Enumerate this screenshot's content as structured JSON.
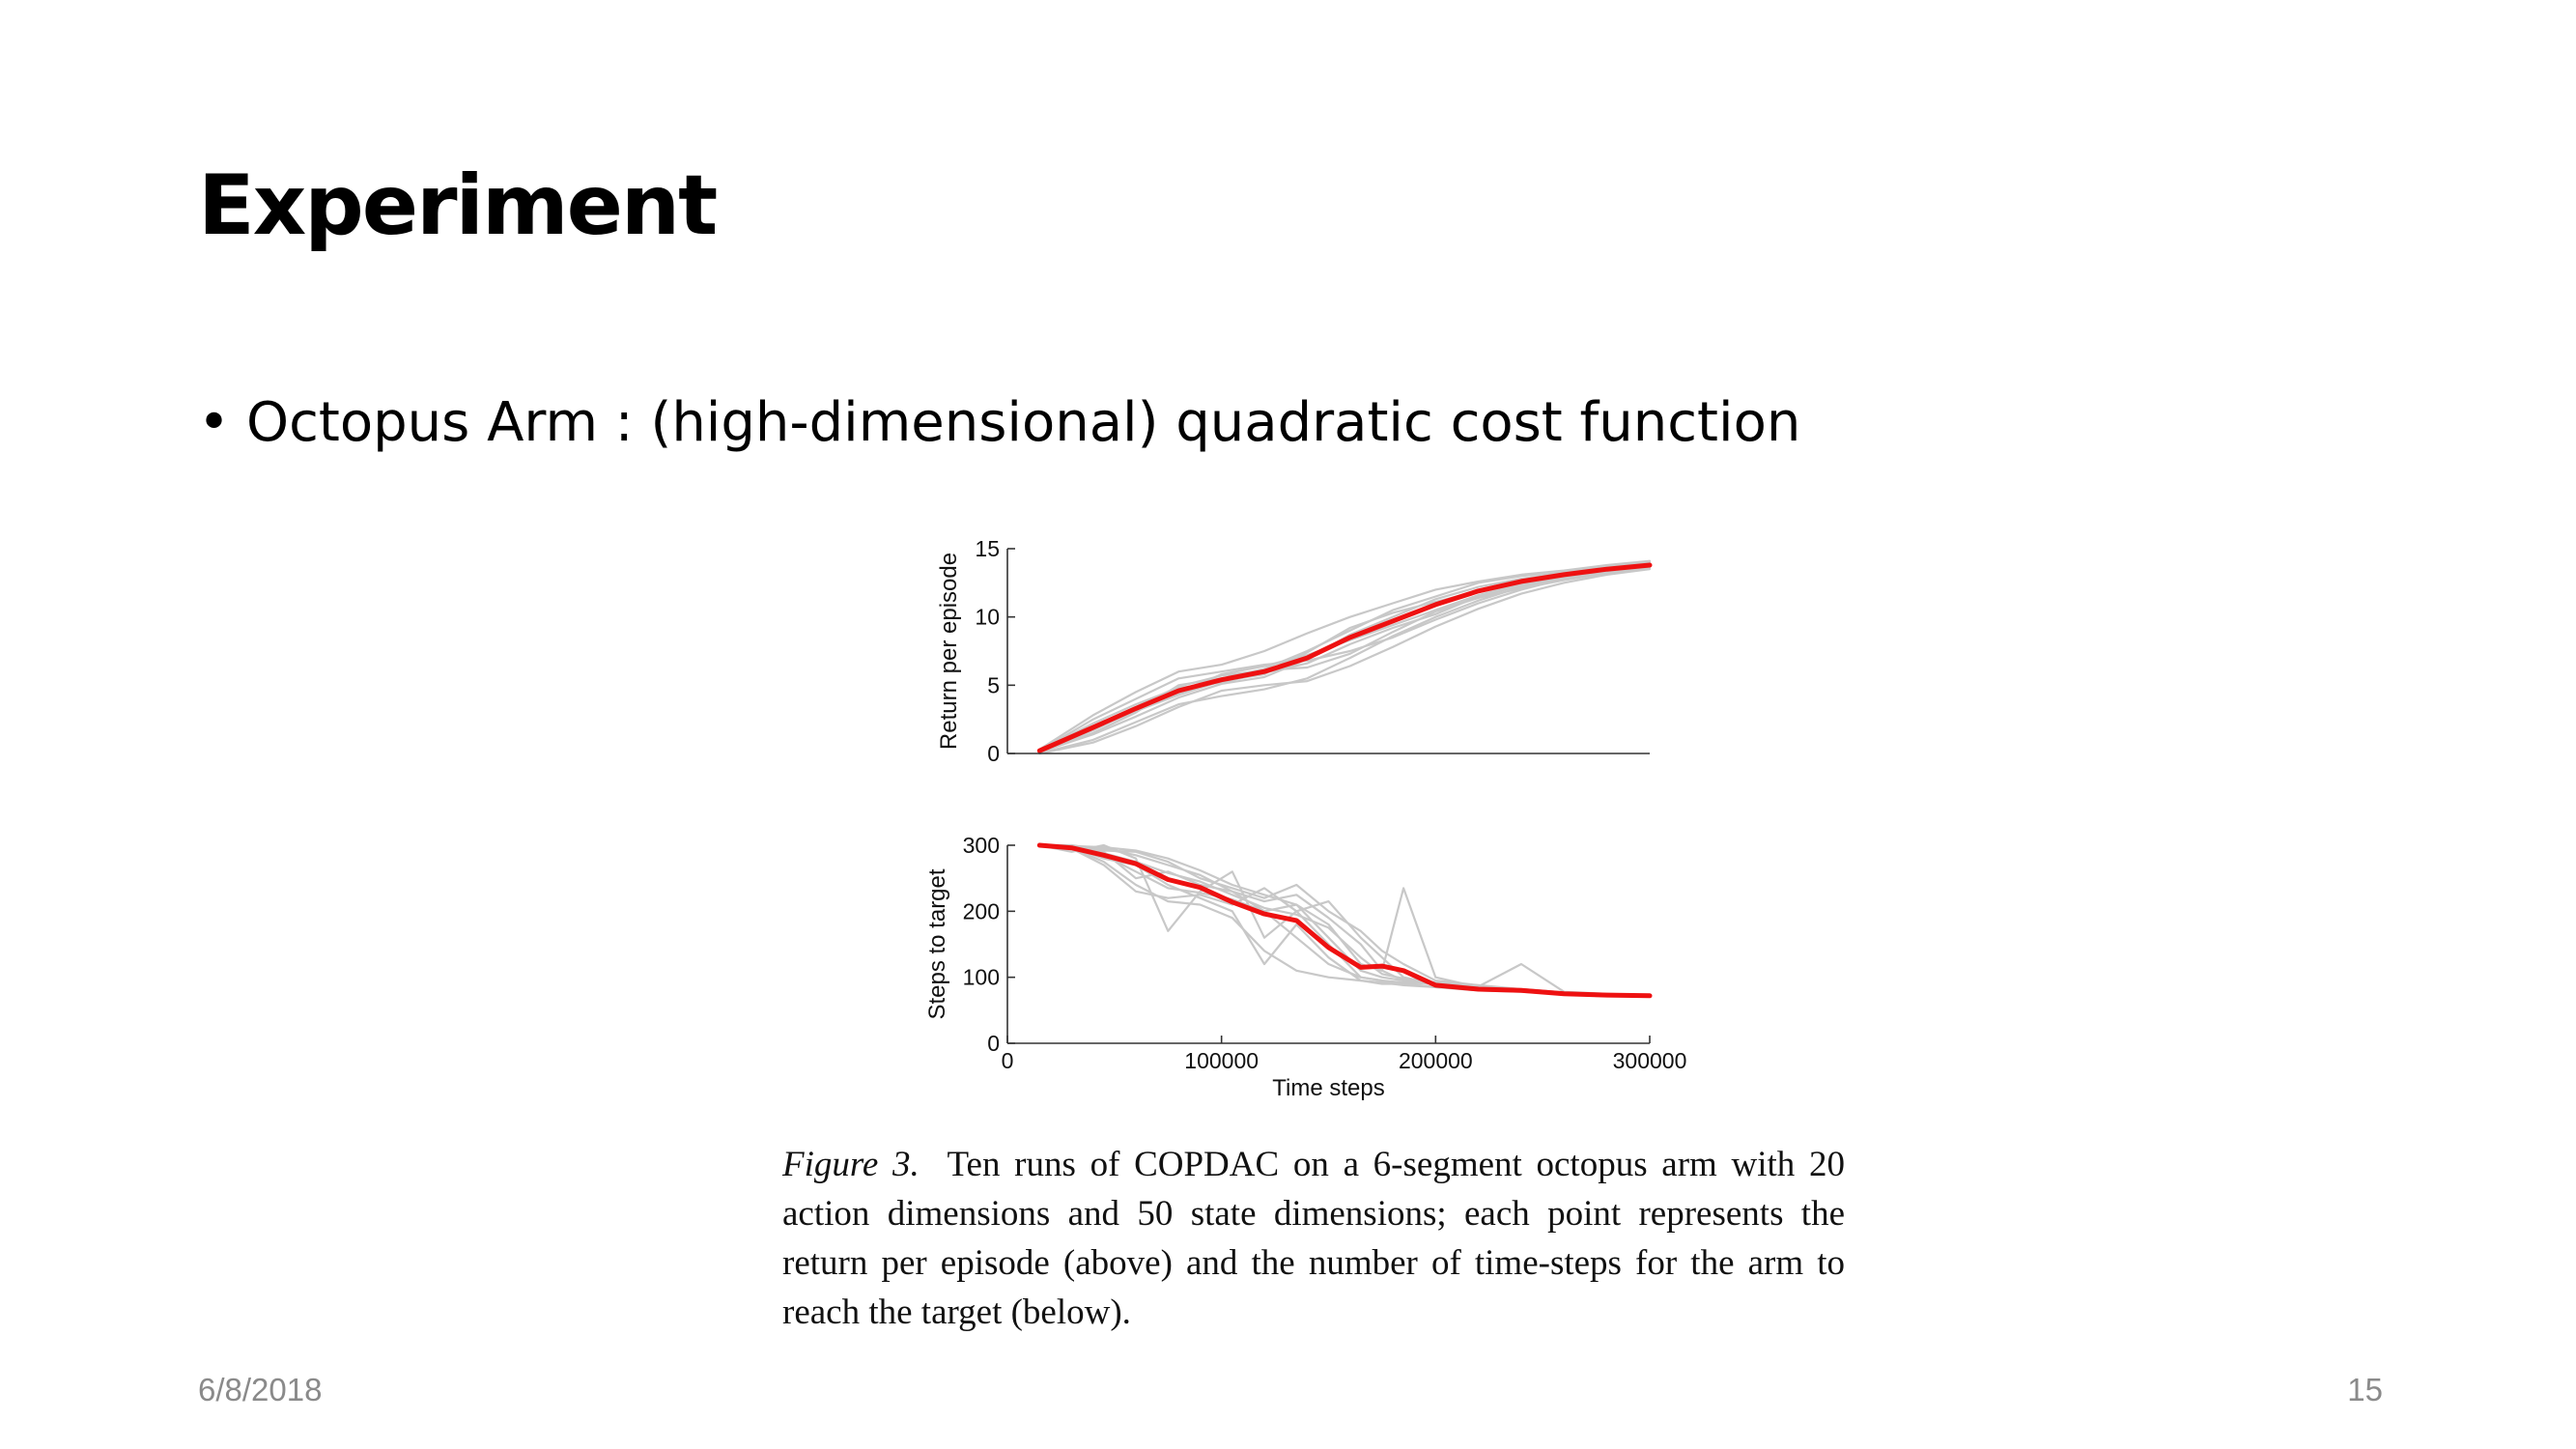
{
  "slide": {
    "title": "Experiment",
    "bullet": "Octopus Arm : (high-dimensional) quadratic cost function",
    "caption_label": "Figure 3.",
    "caption_text": "Ten runs of COPDAC on a 6-segment octopus arm with 20 action dimensions and 50 state dimensions; each point represents the return per episode (above) and the number of time-steps for the arm to reach the target (below).",
    "date": "6/8/2018",
    "page_number": "15"
  },
  "colors": {
    "mean": "#ee1111",
    "runs": "#c8c8c8",
    "axis": "#333333"
  },
  "chart_data": [
    {
      "type": "line",
      "ylabel": "Return per episode",
      "xlabel": "",
      "xlim": [
        0,
        300000
      ],
      "ylim": [
        0,
        15
      ],
      "yticks": [
        0,
        5,
        10,
        15
      ],
      "ytick_labels": [
        "0",
        "5",
        "10",
        "15"
      ],
      "grid": false,
      "series": [
        {
          "role": "mean",
          "x": [
            15000,
            40000,
            60000,
            80000,
            100000,
            120000,
            140000,
            160000,
            180000,
            200000,
            220000,
            240000,
            260000,
            280000,
            300000
          ],
          "y": [
            0.2,
            1.9,
            3.3,
            4.6,
            5.4,
            6.0,
            7.0,
            8.5,
            9.7,
            10.9,
            11.9,
            12.6,
            13.1,
            13.5,
            13.8
          ]
        },
        {
          "role": "run",
          "x": [
            15000,
            40000,
            60000,
            80000,
            100000,
            120000,
            140000,
            160000,
            180000,
            200000,
            220000,
            240000,
            260000,
            280000,
            300000
          ],
          "y": [
            0.1,
            1.5,
            3.0,
            5.0,
            5.5,
            6.2,
            7.5,
            9.0,
            10.5,
            11.5,
            12.5,
            13.0,
            13.3,
            13.7,
            14.0
          ]
        },
        {
          "role": "run",
          "x": [
            15000,
            40000,
            60000,
            80000,
            100000,
            120000,
            140000,
            160000,
            180000,
            200000,
            220000,
            240000,
            260000,
            280000,
            300000
          ],
          "y": [
            0.2,
            2.5,
            4.0,
            5.5,
            6.0,
            6.5,
            6.8,
            7.5,
            8.5,
            9.8,
            11.0,
            12.0,
            12.8,
            13.3,
            13.6
          ]
        },
        {
          "role": "run",
          "x": [
            15000,
            40000,
            60000,
            80000,
            100000,
            120000,
            140000,
            160000,
            180000,
            200000,
            220000,
            240000,
            260000,
            280000,
            300000
          ],
          "y": [
            0.0,
            1.0,
            2.3,
            3.6,
            4.2,
            4.7,
            5.5,
            7.0,
            8.6,
            10.0,
            11.2,
            12.2,
            12.9,
            13.4,
            13.7
          ]
        },
        {
          "role": "run",
          "x": [
            15000,
            40000,
            60000,
            80000,
            100000,
            120000,
            140000,
            160000,
            180000,
            200000,
            220000,
            240000,
            260000,
            280000,
            300000
          ],
          "y": [
            0.3,
            2.8,
            4.5,
            6.0,
            6.5,
            7.5,
            8.8,
            10.0,
            11.0,
            12.0,
            12.6,
            13.1,
            13.4,
            13.8,
            14.1
          ]
        },
        {
          "role": "run",
          "x": [
            15000,
            40000,
            60000,
            80000,
            100000,
            120000,
            140000,
            160000,
            180000,
            200000,
            220000,
            240000,
            260000,
            280000,
            300000
          ],
          "y": [
            0.1,
            1.7,
            3.2,
            4.4,
            5.8,
            6.4,
            7.2,
            8.3,
            9.4,
            10.5,
            11.6,
            12.4,
            13.0,
            13.5,
            13.9
          ]
        },
        {
          "role": "run",
          "x": [
            15000,
            40000,
            60000,
            80000,
            100000,
            120000,
            140000,
            160000,
            180000,
            200000,
            220000,
            240000,
            260000,
            280000,
            300000
          ],
          "y": [
            0.0,
            0.8,
            2.0,
            3.4,
            4.6,
            5.0,
            5.3,
            6.4,
            7.8,
            9.3,
            10.6,
            11.7,
            12.5,
            13.1,
            13.5
          ]
        },
        {
          "role": "run",
          "x": [
            15000,
            40000,
            60000,
            80000,
            100000,
            120000,
            140000,
            160000,
            180000,
            200000,
            220000,
            240000,
            260000,
            280000,
            300000
          ],
          "y": [
            0.2,
            2.2,
            3.6,
            4.8,
            5.2,
            5.9,
            6.6,
            8.0,
            9.2,
            10.2,
            11.5,
            12.3,
            12.9,
            13.4,
            13.8
          ]
        },
        {
          "role": "run",
          "x": [
            15000,
            40000,
            60000,
            80000,
            100000,
            120000,
            140000,
            160000,
            180000,
            200000,
            220000,
            240000,
            260000,
            280000,
            300000
          ],
          "y": [
            0.1,
            1.4,
            2.7,
            4.1,
            5.1,
            5.6,
            6.9,
            8.7,
            10.0,
            11.3,
            12.2,
            12.8,
            13.2,
            13.6,
            13.9
          ]
        },
        {
          "role": "run",
          "x": [
            15000,
            40000,
            60000,
            80000,
            100000,
            120000,
            140000,
            160000,
            180000,
            200000,
            220000,
            240000,
            260000,
            280000,
            300000
          ],
          "y": [
            0.2,
            2.0,
            3.4,
            4.9,
            5.7,
            6.1,
            6.3,
            7.3,
            8.9,
            10.4,
            11.4,
            12.1,
            12.7,
            13.2,
            13.6
          ]
        },
        {
          "role": "run",
          "x": [
            15000,
            40000,
            60000,
            80000,
            100000,
            120000,
            140000,
            160000,
            180000,
            200000,
            220000,
            240000,
            260000,
            280000,
            300000
          ],
          "y": [
            0.1,
            1.8,
            3.1,
            4.3,
            5.3,
            5.8,
            7.4,
            9.2,
            10.3,
            11.1,
            11.9,
            12.5,
            13.0,
            13.4,
            13.8
          ]
        }
      ]
    },
    {
      "type": "line",
      "ylabel": "Steps to target",
      "xlabel": "Time steps",
      "xlim": [
        0,
        300000
      ],
      "ylim": [
        0,
        300
      ],
      "xticks": [
        0,
        100000,
        200000,
        300000
      ],
      "xtick_labels": [
        "0",
        "100000",
        "200000",
        "300000"
      ],
      "yticks": [
        0,
        100,
        200,
        300
      ],
      "ytick_labels": [
        "0",
        "100",
        "200",
        "300"
      ],
      "grid": false,
      "series": [
        {
          "role": "mean",
          "x": [
            15000,
            30000,
            45000,
            60000,
            75000,
            90000,
            105000,
            120000,
            135000,
            150000,
            165000,
            175000,
            185000,
            200000,
            220000,
            240000,
            260000,
            280000,
            300000
          ],
          "y": [
            300,
            296,
            285,
            272,
            248,
            236,
            214,
            196,
            186,
            145,
            115,
            117,
            110,
            88,
            82,
            80,
            75,
            73,
            72
          ]
        },
        {
          "role": "run",
          "x": [
            15000,
            30000,
            45000,
            60000,
            75000,
            90000,
            105000,
            120000,
            135000,
            150000,
            165000,
            175000,
            185000,
            200000,
            220000,
            240000,
            260000,
            280000,
            300000
          ],
          "y": [
            300,
            295,
            270,
            230,
            220,
            225,
            210,
            235,
            200,
            150,
            100,
            95,
            90,
            85,
            82,
            80,
            75,
            73,
            72
          ]
        },
        {
          "role": "run",
          "x": [
            15000,
            30000,
            45000,
            60000,
            75000,
            90000,
            105000,
            120000,
            135000,
            150000,
            165000,
            175000,
            185000,
            200000,
            220000,
            240000,
            260000,
            280000,
            300000
          ],
          "y": [
            300,
            290,
            300,
            280,
            170,
            230,
            260,
            160,
            200,
            215,
            160,
            130,
            100,
            90,
            85,
            80,
            76,
            74,
            72
          ]
        },
        {
          "role": "run",
          "x": [
            15000,
            30000,
            45000,
            60000,
            75000,
            90000,
            105000,
            120000,
            135000,
            150000,
            165000,
            175000,
            185000,
            200000,
            220000,
            240000,
            260000,
            280000,
            300000
          ],
          "y": [
            300,
            298,
            290,
            250,
            260,
            240,
            230,
            200,
            210,
            180,
            120,
            110,
            235,
            100,
            85,
            80,
            75,
            73,
            72
          ]
        },
        {
          "role": "run",
          "x": [
            15000,
            30000,
            45000,
            60000,
            75000,
            90000,
            105000,
            120000,
            135000,
            150000,
            165000,
            175000,
            185000,
            200000,
            220000,
            240000,
            260000,
            280000,
            300000
          ],
          "y": [
            300,
            297,
            280,
            270,
            240,
            220,
            200,
            120,
            180,
            130,
            95,
            90,
            90,
            85,
            80,
            78,
            74,
            72,
            71
          ]
        },
        {
          "role": "run",
          "x": [
            15000,
            30000,
            45000,
            60000,
            75000,
            90000,
            105000,
            120000,
            135000,
            150000,
            165000,
            175000,
            185000,
            200000,
            220000,
            240000,
            260000,
            280000,
            300000
          ],
          "y": [
            300,
            299,
            295,
            285,
            270,
            255,
            230,
            215,
            225,
            190,
            150,
            110,
            95,
            90,
            86,
            120,
            78,
            75,
            73
          ]
        },
        {
          "role": "run",
          "x": [
            15000,
            30000,
            45000,
            60000,
            75000,
            90000,
            105000,
            120000,
            135000,
            150000,
            165000,
            175000,
            185000,
            200000,
            220000,
            240000,
            260000,
            280000,
            300000
          ],
          "y": [
            300,
            296,
            275,
            240,
            215,
            210,
            190,
            140,
            110,
            100,
            95,
            92,
            88,
            85,
            82,
            80,
            76,
            74,
            72
          ]
        },
        {
          "role": "run",
          "x": [
            15000,
            30000,
            45000,
            60000,
            75000,
            90000,
            105000,
            120000,
            135000,
            150000,
            165000,
            175000,
            185000,
            200000,
            220000,
            240000,
            260000,
            280000,
            300000
          ],
          "y": [
            300,
            300,
            292,
            290,
            275,
            250,
            235,
            220,
            240,
            200,
            170,
            140,
            120,
            95,
            88,
            82,
            77,
            74,
            72
          ]
        },
        {
          "role": "run",
          "x": [
            15000,
            30000,
            45000,
            60000,
            75000,
            90000,
            105000,
            120000,
            135000,
            150000,
            165000,
            175000,
            185000,
            200000,
            220000,
            240000,
            260000,
            280000,
            300000
          ],
          "y": [
            300,
            294,
            285,
            260,
            235,
            228,
            218,
            200,
            160,
            120,
            100,
            95,
            92,
            90,
            84,
            80,
            76,
            73,
            72
          ]
        },
        {
          "role": "run",
          "x": [
            15000,
            30000,
            45000,
            60000,
            75000,
            90000,
            105000,
            120000,
            135000,
            150000,
            165000,
            175000,
            185000,
            200000,
            220000,
            240000,
            260000,
            280000,
            300000
          ],
          "y": [
            300,
            298,
            288,
            275,
            258,
            245,
            225,
            205,
            195,
            175,
            130,
            105,
            98,
            92,
            86,
            82,
            77,
            74,
            72
          ]
        },
        {
          "role": "run",
          "x": [
            15000,
            30000,
            45000,
            60000,
            75000,
            90000,
            105000,
            120000,
            135000,
            150000,
            165000,
            175000,
            185000,
            200000,
            220000,
            240000,
            260000,
            280000,
            300000
          ],
          "y": [
            300,
            299,
            297,
            292,
            280,
            262,
            240,
            225,
            210,
            160,
            110,
            100,
            95,
            90,
            85,
            81,
            76,
            74,
            72
          ]
        }
      ]
    }
  ]
}
